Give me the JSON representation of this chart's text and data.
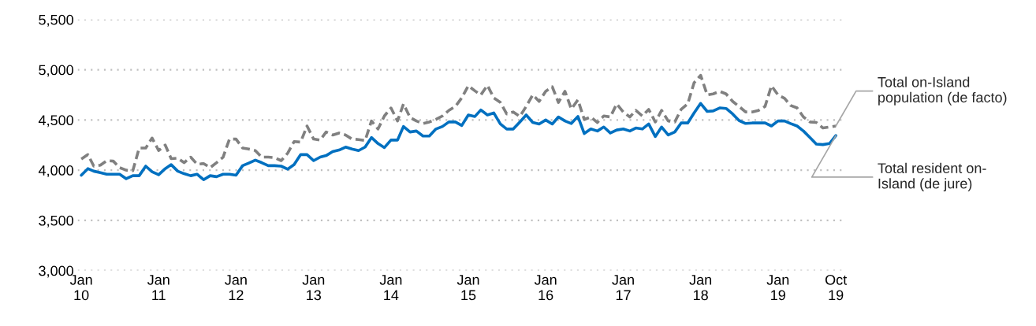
{
  "chart_data": {
    "type": "line",
    "x": [
      "2010-01",
      "2010-02",
      "2010-03",
      "2010-04",
      "2010-05",
      "2010-06",
      "2010-07",
      "2010-08",
      "2010-09",
      "2010-10",
      "2010-11",
      "2010-12",
      "2011-01",
      "2011-02",
      "2011-03",
      "2011-04",
      "2011-05",
      "2011-06",
      "2011-07",
      "2011-08",
      "2011-09",
      "2011-10",
      "2011-11",
      "2011-12",
      "2012-01",
      "2012-02",
      "2012-03",
      "2012-04",
      "2012-05",
      "2012-06",
      "2012-07",
      "2012-08",
      "2012-09",
      "2012-10",
      "2012-11",
      "2012-12",
      "2013-01",
      "2013-02",
      "2013-03",
      "2013-04",
      "2013-05",
      "2013-06",
      "2013-07",
      "2013-08",
      "2013-09",
      "2013-10",
      "2013-11",
      "2013-12",
      "2014-01",
      "2014-02",
      "2014-03",
      "2014-04",
      "2014-05",
      "2014-06",
      "2014-07",
      "2014-08",
      "2014-09",
      "2014-10",
      "2014-11",
      "2014-12",
      "2015-01",
      "2015-02",
      "2015-03",
      "2015-04",
      "2015-05",
      "2015-06",
      "2015-07",
      "2015-08",
      "2015-09",
      "2015-10",
      "2015-11",
      "2015-12",
      "2016-01",
      "2016-02",
      "2016-03",
      "2016-04",
      "2016-05",
      "2016-06",
      "2016-07",
      "2016-08",
      "2016-09",
      "2016-10",
      "2016-11",
      "2016-12",
      "2017-01",
      "2017-02",
      "2017-03",
      "2017-04",
      "2017-05",
      "2017-06",
      "2017-07",
      "2017-08",
      "2017-09",
      "2017-10",
      "2017-11",
      "2017-12",
      "2018-01",
      "2018-02",
      "2018-03",
      "2018-04",
      "2018-05",
      "2018-06",
      "2018-07",
      "2018-08",
      "2018-09",
      "2018-10",
      "2018-11",
      "2018-12",
      "2019-01",
      "2019-02",
      "2019-03",
      "2019-04",
      "2019-05",
      "2019-06",
      "2019-07",
      "2019-08",
      "2019-09",
      "2019-10"
    ],
    "series": [
      {
        "name": "Total on-Island\npopulation (de facto)",
        "color": "#808080",
        "line_style": "dashed",
        "values": [
          4110,
          4155,
          4040,
          4050,
          4095,
          4090,
          4025,
          4000,
          3995,
          4220,
          4220,
          4320,
          4195,
          4250,
          4115,
          4120,
          4075,
          4130,
          4060,
          4065,
          4025,
          4075,
          4130,
          4310,
          4310,
          4220,
          4210,
          4195,
          4130,
          4130,
          4125,
          4095,
          4170,
          4285,
          4280,
          4440,
          4310,
          4300,
          4380,
          4350,
          4370,
          4350,
          4310,
          4305,
          4295,
          4490,
          4410,
          4540,
          4620,
          4490,
          4660,
          4525,
          4490,
          4465,
          4480,
          4505,
          4540,
          4595,
          4635,
          4720,
          4840,
          4790,
          4750,
          4845,
          4720,
          4675,
          4560,
          4580,
          4535,
          4635,
          4750,
          4685,
          4785,
          4830,
          4675,
          4785,
          4610,
          4700,
          4505,
          4530,
          4475,
          4540,
          4530,
          4660,
          4580,
          4530,
          4595,
          4540,
          4605,
          4480,
          4595,
          4490,
          4480,
          4605,
          4660,
          4870,
          4945,
          4750,
          4760,
          4785,
          4760,
          4685,
          4635,
          4580,
          4580,
          4595,
          4635,
          4840,
          4750,
          4715,
          4645,
          4620,
          4530,
          4480,
          4475,
          4420,
          4430,
          4440
        ]
      },
      {
        "name": "Total resident on-\nIsland (de jure)",
        "color": "#0070c0",
        "line_style": "solid",
        "values": [
          3950,
          4015,
          3990,
          3975,
          3960,
          3960,
          3960,
          3915,
          3945,
          3945,
          4040,
          3985,
          3955,
          4015,
          4055,
          3990,
          3965,
          3945,
          3960,
          3905,
          3945,
          3935,
          3960,
          3960,
          3950,
          4045,
          4070,
          4100,
          4075,
          4045,
          4045,
          4040,
          4010,
          4055,
          4155,
          4155,
          4095,
          4130,
          4145,
          4185,
          4200,
          4230,
          4210,
          4195,
          4230,
          4325,
          4265,
          4225,
          4300,
          4300,
          4435,
          4380,
          4390,
          4340,
          4340,
          4410,
          4435,
          4480,
          4480,
          4445,
          4550,
          4535,
          4600,
          4550,
          4570,
          4460,
          4410,
          4410,
          4480,
          4550,
          4475,
          4460,
          4500,
          4460,
          4530,
          4490,
          4465,
          4535,
          4365,
          4410,
          4390,
          4430,
          4370,
          4400,
          4410,
          4390,
          4420,
          4410,
          4460,
          4335,
          4430,
          4350,
          4380,
          4470,
          4470,
          4570,
          4665,
          4585,
          4590,
          4620,
          4615,
          4560,
          4495,
          4465,
          4470,
          4470,
          4470,
          4440,
          4490,
          4490,
          4465,
          4440,
          4390,
          4325,
          4260,
          4255,
          4265,
          4345
        ]
      }
    ],
    "xlim": [
      "2009-12-15",
      "2019-11-10"
    ],
    "xticks": [
      {
        "value": "2010-01",
        "label": "Jan\n10"
      },
      {
        "value": "2011-01",
        "label": "Jan\n11"
      },
      {
        "value": "2012-01",
        "label": "Jan\n12"
      },
      {
        "value": "2013-01",
        "label": "Jan\n13"
      },
      {
        "value": "2014-01",
        "label": "Jan\n14"
      },
      {
        "value": "2015-01",
        "label": "Jan\n15"
      },
      {
        "value": "2016-01",
        "label": "Jan\n16"
      },
      {
        "value": "2017-01",
        "label": "Jan\n17"
      },
      {
        "value": "2018-01",
        "label": "Jan\n18"
      },
      {
        "value": "2019-01",
        "label": "Jan\n19"
      },
      {
        "value": "2019-10",
        "label": "Oct\n19"
      }
    ],
    "ylim": [
      3000,
      5500
    ],
    "yticks": [
      {
        "value": 3000,
        "label": "3,000"
      },
      {
        "value": 3500,
        "label": "3,500"
      },
      {
        "value": 4000,
        "label": "4,000"
      },
      {
        "value": 4500,
        "label": "4,500"
      },
      {
        "value": 5000,
        "label": "5,000"
      },
      {
        "value": 5500,
        "label": "5,500"
      }
    ],
    "grid": "y",
    "legend": false
  }
}
